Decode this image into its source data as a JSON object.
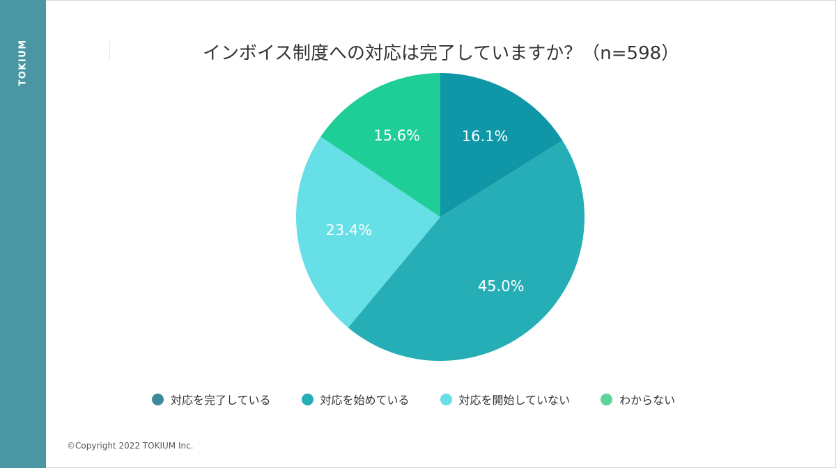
{
  "brand": "TOKIUM",
  "copyright": "©Copyright 2022 TOKIUM Inc.",
  "colors": {
    "side_band": "#4a97a3"
  },
  "chart_data": {
    "type": "pie",
    "title": "インボイス制度への対応は完了していますか？（n=598）",
    "categories": [
      "対応を完了している",
      "対応を始めている",
      "対応を開始していない",
      "わからない"
    ],
    "values": [
      16.1,
      45.0,
      23.4,
      15.6
    ],
    "labels": [
      "16.1%",
      "45.0%",
      "23.4%",
      "15.6%"
    ],
    "colors": [
      "#0f97a8",
      "#26aeb7",
      "#66dfe6",
      "#1fcd96"
    ],
    "legend_colors": [
      "#3d8a9a",
      "#26aeb7",
      "#66dfe6",
      "#5dd49a"
    ],
    "start": "12 o'clock",
    "direction": "clockwise",
    "legend": "bottom"
  }
}
